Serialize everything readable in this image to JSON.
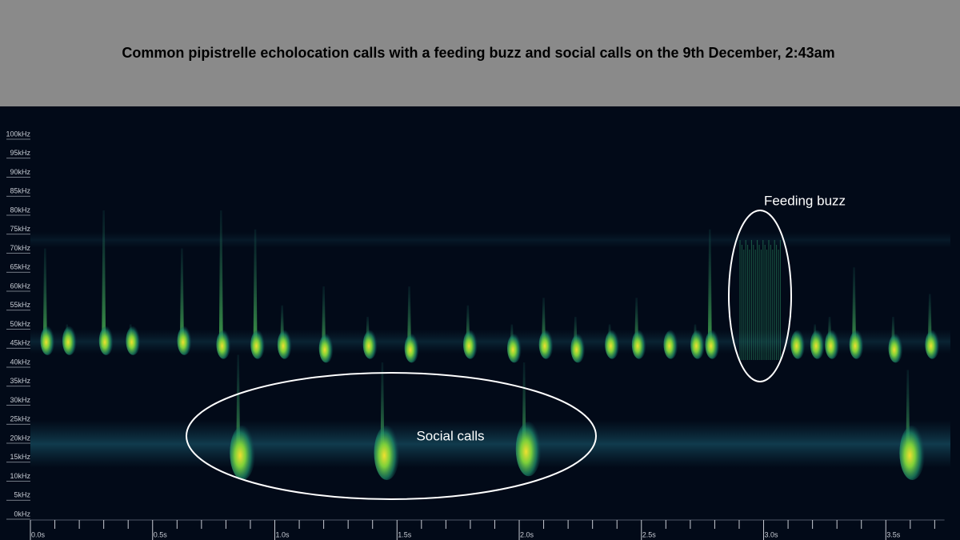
{
  "chart_data": {
    "type": "spectrogram",
    "title": "Common pipistrelle echolocation calls with a feeding buzz and social calls on the 9th December, 2:43am",
    "annotations": [
      "Feeding buzz",
      "Social calls"
    ],
    "xlim": [
      0,
      3.74
    ],
    "ylim": [
      0,
      105
    ],
    "yticks": [
      {
        "value": 0,
        "label": "0kHz"
      },
      {
        "value": 5,
        "label": "5kHz"
      },
      {
        "value": 10,
        "label": "10kHz"
      },
      {
        "value": 15,
        "label": "15kHz"
      },
      {
        "value": 20,
        "label": "20kHz"
      },
      {
        "value": 25,
        "label": "25kHz"
      },
      {
        "value": 30,
        "label": "30kHz"
      },
      {
        "value": 35,
        "label": "35kHz"
      },
      {
        "value": 40,
        "label": "40kHz"
      },
      {
        "value": 45,
        "label": "45kHz"
      },
      {
        "value": 50,
        "label": "50kHz"
      },
      {
        "value": 55,
        "label": "55kHz"
      },
      {
        "value": 60,
        "label": "60kHz"
      },
      {
        "value": 65,
        "label": "65kHz"
      },
      {
        "value": 70,
        "label": "70kHz"
      },
      {
        "value": 75,
        "label": "75kHz"
      },
      {
        "value": 80,
        "label": "80kHz"
      },
      {
        "value": 85,
        "label": "85kHz"
      },
      {
        "value": 90,
        "label": "90kHz"
      },
      {
        "value": 95,
        "label": "95kHz"
      },
      {
        "value": 100,
        "label": "100kHz"
      }
    ],
    "xticks": [
      {
        "value": 0,
        "label": "0.0s"
      },
      {
        "value": 0.5,
        "label": "0.5s"
      },
      {
        "value": 1,
        "label": "1.0s"
      },
      {
        "value": 1.5,
        "label": "1.5s"
      },
      {
        "value": 2,
        "label": "2.0s"
      },
      {
        "value": 2.5,
        "label": "2.5s"
      },
      {
        "value": 3,
        "label": "3.0s"
      },
      {
        "value": 3.5,
        "label": "3.5s"
      }
    ],
    "xminorticks": [
      0.1,
      0.2,
      0.3,
      0.4,
      0.6,
      0.7,
      0.8,
      0.9,
      1.1,
      1.2,
      1.3,
      1.4,
      1.6,
      1.7,
      1.8,
      1.9,
      2.1,
      2.2,
      2.3,
      2.4,
      2.6,
      2.7,
      2.8,
      2.9,
      3.1,
      3.2,
      3.3,
      3.4,
      3.6,
      3.7
    ],
    "echolocation_calls": {
      "time": [
        0.06,
        0.15,
        0.3,
        0.41,
        0.62,
        0.78,
        0.92,
        1.03,
        1.2,
        1.38,
        1.55,
        1.79,
        1.97,
        2.1,
        2.23,
        2.37,
        2.48,
        2.61,
        2.72,
        2.78,
        3.13,
        3.21,
        3.27,
        3.37,
        3.53,
        3.68
      ],
      "fmax": [
        70,
        50,
        80,
        50,
        70,
        80,
        75,
        55,
        60,
        52,
        60,
        55,
        50,
        57,
        52,
        50,
        57,
        48,
        50,
        75,
        48,
        50,
        52,
        65,
        52,
        58
      ],
      "fmin": [
        44,
        44,
        44,
        44,
        44,
        43,
        43,
        43,
        42,
        43,
        42,
        43,
        42,
        43,
        42,
        43,
        43,
        43,
        43,
        43,
        43,
        43,
        43,
        43,
        42,
        43
      ]
    },
    "social_calls": {
      "time": [
        0.85,
        1.44,
        2.02,
        3.59
      ],
      "fmax": [
        42,
        40,
        40,
        38
      ],
      "fmin": [
        13,
        13,
        14,
        13
      ]
    }
  }
}
